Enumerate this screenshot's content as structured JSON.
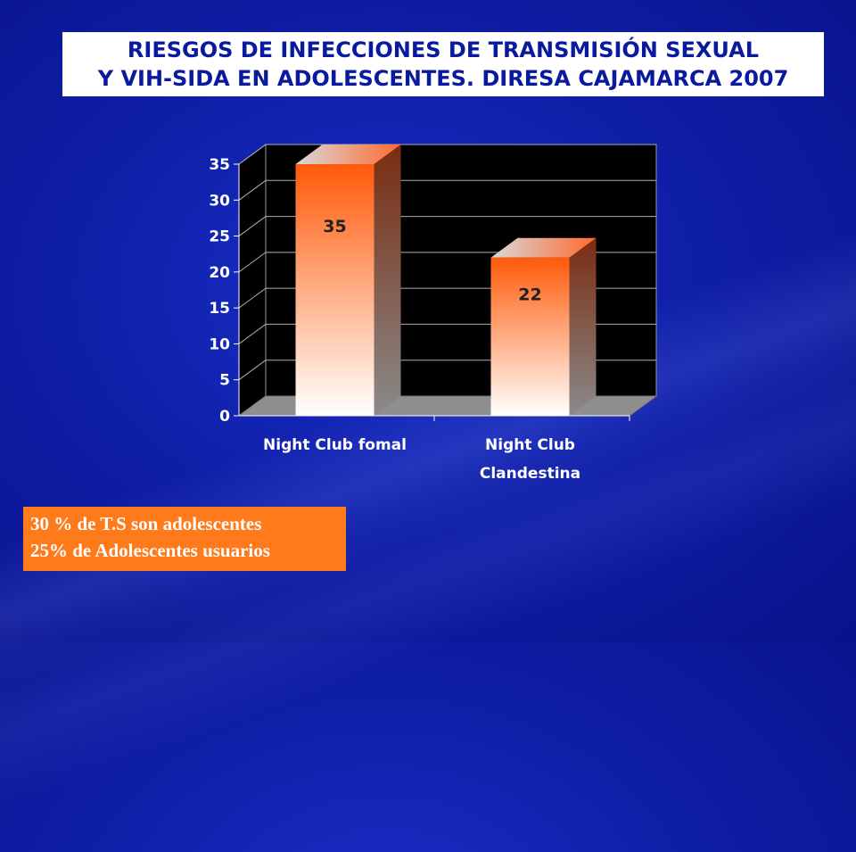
{
  "title": {
    "line1": "RIESGOS DE INFECCIONES DE TRANSMISIÓN SEXUAL",
    "line2": "Y VIH-SIDA EN ADOLESCENTES. DIRESA CAJAMARCA 2007"
  },
  "notes": [
    "30 % de T.S son adolescentes",
    "25% de Adolescentes usuarios"
  ],
  "colors": {
    "background": "#0f1fa8",
    "title_bg": "#ffffff",
    "title_text": "#0a1a9e",
    "bar_top": "#ff5a0a",
    "bar_bottom": "#ffffff",
    "note_bg": "#ff7a1a"
  },
  "chart_data": {
    "type": "bar",
    "categories": [
      "Night Club fomal",
      "Night Club Clandestina"
    ],
    "category_lines": [
      [
        "Night Club fomal"
      ],
      [
        "Night Club",
        "Clandestina"
      ]
    ],
    "values": [
      35,
      22
    ],
    "data_labels": [
      "35",
      "22"
    ],
    "ylim": [
      0,
      35
    ],
    "yticks": [
      0,
      5,
      10,
      15,
      20,
      25,
      30,
      35
    ],
    "title": "",
    "xlabel": "",
    "ylabel": "",
    "grid": true,
    "style": "3d"
  }
}
